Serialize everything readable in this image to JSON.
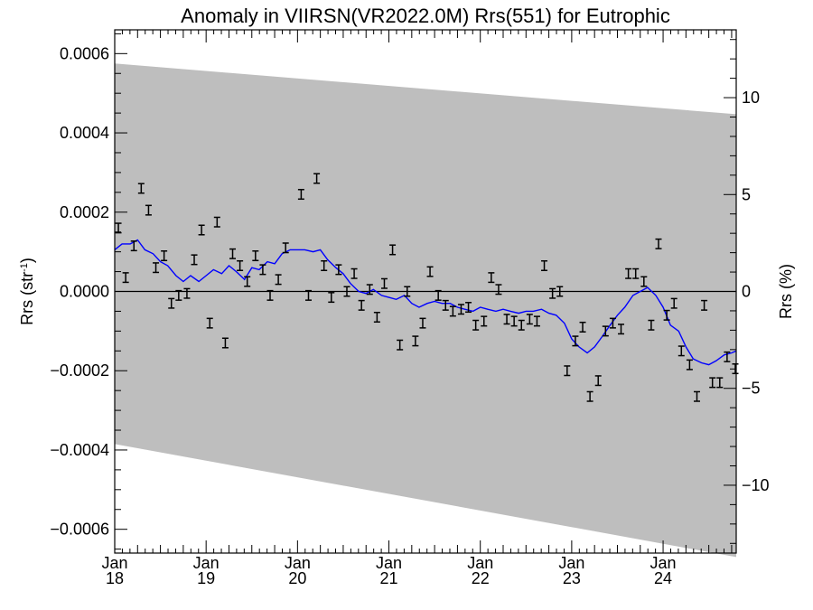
{
  "chart_data": {
    "type": "scatter",
    "title": "Anomaly in VIIRSN(VR2022.0M) Rrs(551) for Eutrophic",
    "ylabel_left": {
      "main": "Rrs (str",
      "sup": "-1",
      "end": ")"
    },
    "ylabel_right": "Rrs (%)",
    "xlim": [
      2018.0,
      2024.8
    ],
    "ylim": [
      -0.00066,
      0.00066
    ],
    "y2lim": [
      -13.5,
      13.5
    ],
    "x_ticks": [
      {
        "x": 2018,
        "top": "Jan",
        "bottom": "18"
      },
      {
        "x": 2019,
        "top": "Jan",
        "bottom": "19"
      },
      {
        "x": 2020,
        "top": "Jan",
        "bottom": "20"
      },
      {
        "x": 2021,
        "top": "Jan",
        "bottom": "21"
      },
      {
        "x": 2022,
        "top": "Jan",
        "bottom": "22"
      },
      {
        "x": 2023,
        "top": "Jan",
        "bottom": "23"
      },
      {
        "x": 2024,
        "top": "Jan",
        "bottom": "24"
      }
    ],
    "y_ticks": [
      {
        "v": 0.0006,
        "label": "0.0006"
      },
      {
        "v": 0.0004,
        "label": "0.0004"
      },
      {
        "v": 0.0002,
        "label": "0.0002"
      },
      {
        "v": 0.0,
        "label": "0.0000"
      },
      {
        "v": -0.0002,
        "label": "−0.0002"
      },
      {
        "v": -0.0004,
        "label": "−0.0004"
      },
      {
        "v": -0.0006,
        "label": "−0.0006"
      }
    ],
    "y2_ticks": [
      {
        "v": 10,
        "label": "10"
      },
      {
        "v": 5,
        "label": "5"
      },
      {
        "v": 0,
        "label": "0"
      },
      {
        "v": -5,
        "label": "−5"
      },
      {
        "v": -10,
        "label": "−10"
      }
    ],
    "band": {
      "upper": [
        [
          2018.0,
          0.000575
        ],
        [
          2024.8,
          0.000447
        ]
      ],
      "lower": [
        [
          2018.0,
          -0.000385
        ],
        [
          2024.8,
          -0.00067
        ]
      ]
    },
    "colors": {
      "band": "#bebebe",
      "smooth": "#0000ff",
      "points": "#000000"
    },
    "err_half": 1.2e-05,
    "points": [
      [
        2018.04,
        0.00016
      ],
      [
        2018.12,
        3.5e-05
      ],
      [
        2018.21,
        0.000115
      ],
      [
        2018.29,
        0.00026
      ],
      [
        2018.37,
        0.000205
      ],
      [
        2018.45,
        6e-05
      ],
      [
        2018.54,
        9e-05
      ],
      [
        2018.62,
        -3e-05
      ],
      [
        2018.7,
        -1e-05
      ],
      [
        2018.79,
        -5e-06
      ],
      [
        2018.87,
        8e-05
      ],
      [
        2018.95,
        0.000155
      ],
      [
        2019.04,
        -8e-05
      ],
      [
        2019.12,
        0.000175
      ],
      [
        2019.21,
        -0.00013
      ],
      [
        2019.29,
        9.5e-05
      ],
      [
        2019.37,
        6.5e-05
      ],
      [
        2019.45,
        2.5e-05
      ],
      [
        2019.54,
        9e-05
      ],
      [
        2019.62,
        5.5e-05
      ],
      [
        2019.7,
        -1e-05
      ],
      [
        2019.79,
        3e-05
      ],
      [
        2019.87,
        0.00011
      ],
      [
        2020.04,
        0.000245
      ],
      [
        2020.12,
        -1e-05
      ],
      [
        2020.21,
        0.000285
      ],
      [
        2020.29,
        6.5e-05
      ],
      [
        2020.37,
        -1.5e-05
      ],
      [
        2020.45,
        5.5e-05
      ],
      [
        2020.54,
        0.0
      ],
      [
        2020.62,
        4.5e-05
      ],
      [
        2020.7,
        -3.5e-05
      ],
      [
        2020.79,
        5e-06
      ],
      [
        2020.87,
        -6.5e-05
      ],
      [
        2020.95,
        2e-05
      ],
      [
        2021.04,
        0.000105
      ],
      [
        2021.12,
        -0.000135
      ],
      [
        2021.2,
        0.0
      ],
      [
        2021.29,
        -0.000125
      ],
      [
        2021.37,
        -8e-05
      ],
      [
        2021.45,
        5e-05
      ],
      [
        2021.54,
        -1e-05
      ],
      [
        2021.62,
        -3.5e-05
      ],
      [
        2021.7,
        -5e-05
      ],
      [
        2021.79,
        -4.5e-05
      ],
      [
        2021.87,
        -4e-05
      ],
      [
        2021.95,
        -8.5e-05
      ],
      [
        2022.04,
        -7.5e-05
      ],
      [
        2022.12,
        3.5e-05
      ],
      [
        2022.2,
        5e-06
      ],
      [
        2022.29,
        -7e-05
      ],
      [
        2022.37,
        -7.5e-05
      ],
      [
        2022.45,
        -8.5e-05
      ],
      [
        2022.54,
        -7e-05
      ],
      [
        2022.62,
        -7.5e-05
      ],
      [
        2022.7,
        6.5e-05
      ],
      [
        2022.79,
        -5e-06
      ],
      [
        2022.87,
        -0.0
      ],
      [
        2022.95,
        -0.0002
      ],
      [
        2023.04,
        -0.000125
      ],
      [
        2023.12,
        -9e-05
      ],
      [
        2023.2,
        -0.000265
      ],
      [
        2023.29,
        -0.000225
      ],
      [
        2023.37,
        -0.0001
      ],
      [
        2023.45,
        -8e-05
      ],
      [
        2023.54,
        -9.5e-05
      ],
      [
        2023.62,
        4.5e-05
      ],
      [
        2023.7,
        4.5e-05
      ],
      [
        2023.79,
        2.5e-05
      ],
      [
        2023.87,
        -8.5e-05
      ],
      [
        2023.95,
        0.00012
      ],
      [
        2024.04,
        -6e-05
      ],
      [
        2024.12,
        -3e-05
      ],
      [
        2024.2,
        -0.00015
      ],
      [
        2024.29,
        -0.000185
      ],
      [
        2024.37,
        -0.000265
      ],
      [
        2024.45,
        -3.5e-05
      ],
      [
        2024.54,
        -0.00023
      ],
      [
        2024.62,
        -0.00023
      ],
      [
        2024.7,
        -0.000165
      ],
      [
        2024.79,
        -0.000195
      ]
    ],
    "smooth": [
      [
        2018.0,
        0.000105
      ],
      [
        2018.08,
        0.00012
      ],
      [
        2018.17,
        0.00012
      ],
      [
        2018.25,
        0.00013
      ],
      [
        2018.33,
        0.000105
      ],
      [
        2018.42,
        9.5e-05
      ],
      [
        2018.5,
        7.5e-05
      ],
      [
        2018.58,
        6.5e-05
      ],
      [
        2018.67,
        4e-05
      ],
      [
        2018.75,
        2.5e-05
      ],
      [
        2018.83,
        4e-05
      ],
      [
        2018.92,
        2.5e-05
      ],
      [
        2019.0,
        4e-05
      ],
      [
        2019.08,
        5.5e-05
      ],
      [
        2019.17,
        4.5e-05
      ],
      [
        2019.25,
        6.5e-05
      ],
      [
        2019.33,
        5e-05
      ],
      [
        2019.42,
        3e-05
      ],
      [
        2019.5,
        6e-05
      ],
      [
        2019.58,
        5.5e-05
      ],
      [
        2019.67,
        7.5e-05
      ],
      [
        2019.75,
        7e-05
      ],
      [
        2019.83,
        9.5e-05
      ],
      [
        2019.92,
        0.000105
      ],
      [
        2020.0,
        0.000105
      ],
      [
        2020.08,
        0.000105
      ],
      [
        2020.17,
        0.0001
      ],
      [
        2020.25,
        0.000105
      ],
      [
        2020.33,
        8e-05
      ],
      [
        2020.42,
        6e-05
      ],
      [
        2020.5,
        4.5e-05
      ],
      [
        2020.58,
        2e-05
      ],
      [
        2020.67,
        0.0
      ],
      [
        2020.75,
        -5e-06
      ],
      [
        2020.83,
        5e-06
      ],
      [
        2020.92,
        -1e-05
      ],
      [
        2021.0,
        -1.5e-05
      ],
      [
        2021.08,
        -2e-05
      ],
      [
        2021.17,
        -1e-05
      ],
      [
        2021.25,
        -3e-05
      ],
      [
        2021.33,
        -4e-05
      ],
      [
        2021.42,
        -3e-05
      ],
      [
        2021.5,
        -2.5e-05
      ],
      [
        2021.58,
        -3e-05
      ],
      [
        2021.67,
        -3e-05
      ],
      [
        2021.75,
        -4e-05
      ],
      [
        2021.83,
        -4.5e-05
      ],
      [
        2021.92,
        -5e-05
      ],
      [
        2022.0,
        -4e-05
      ],
      [
        2022.08,
        -4.5e-05
      ],
      [
        2022.17,
        -5e-05
      ],
      [
        2022.25,
        -4.5e-05
      ],
      [
        2022.33,
        -5e-05
      ],
      [
        2022.42,
        -5.5e-05
      ],
      [
        2022.5,
        -5e-05
      ],
      [
        2022.58,
        -5e-05
      ],
      [
        2022.67,
        -4.5e-05
      ],
      [
        2022.75,
        -5.5e-05
      ],
      [
        2022.83,
        -6e-05
      ],
      [
        2022.92,
        -8e-05
      ],
      [
        2023.0,
        -0.00012
      ],
      [
        2023.08,
        -0.00014
      ],
      [
        2023.17,
        -0.000155
      ],
      [
        2023.25,
        -0.00014
      ],
      [
        2023.33,
        -0.000115
      ],
      [
        2023.42,
        -8.5e-05
      ],
      [
        2023.5,
        -6e-05
      ],
      [
        2023.58,
        -4e-05
      ],
      [
        2023.67,
        -1e-05
      ],
      [
        2023.75,
        0.0
      ],
      [
        2023.83,
        1e-05
      ],
      [
        2023.92,
        -1e-05
      ],
      [
        2024.0,
        -4e-05
      ],
      [
        2024.08,
        -8.5e-05
      ],
      [
        2024.17,
        -0.0001
      ],
      [
        2024.25,
        -0.00014
      ],
      [
        2024.33,
        -0.00017
      ],
      [
        2024.42,
        -0.00018
      ],
      [
        2024.5,
        -0.000185
      ],
      [
        2024.58,
        -0.000175
      ],
      [
        2024.67,
        -0.00016
      ],
      [
        2024.75,
        -0.000155
      ],
      [
        2024.8,
        -0.00015
      ]
    ]
  }
}
